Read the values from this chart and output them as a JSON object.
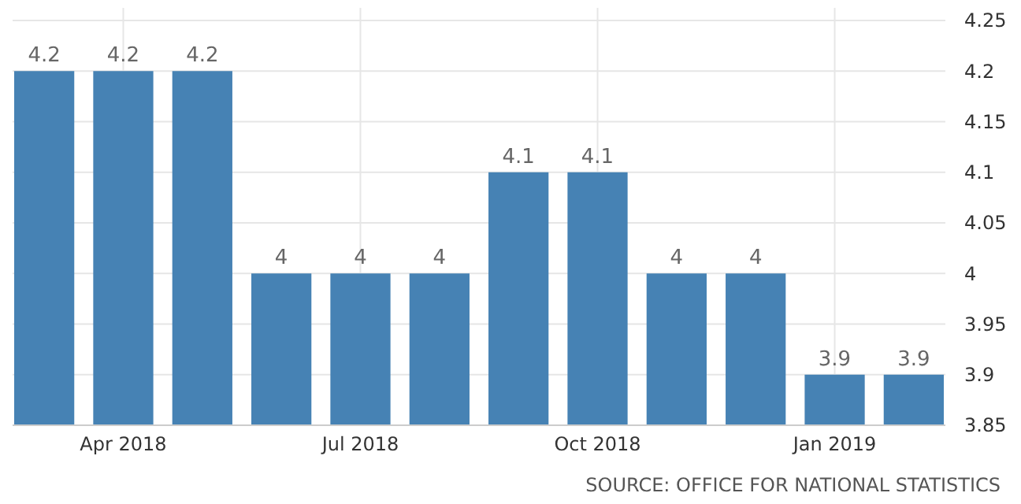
{
  "chart_data": {
    "type": "bar",
    "categories": [
      null,
      "Apr 2018",
      null,
      null,
      "Jul 2018",
      null,
      null,
      "Oct 2018",
      null,
      null,
      "Jan 2019",
      null
    ],
    "values": [
      4.2,
      4.2,
      4.2,
      4,
      4,
      4,
      4.1,
      4.1,
      4,
      4,
      3.9,
      3.9
    ],
    "color": "#4682b4",
    "ylim": [
      3.85,
      4.25
    ],
    "yticks": [
      3.85,
      3.9,
      3.95,
      4,
      4.05,
      4.1,
      4.15,
      4.2,
      4.25
    ],
    "grid": true,
    "data_labels": true,
    "annotations": [
      "SOURCE: OFFICE FOR NATIONAL STATISTICS"
    ]
  }
}
